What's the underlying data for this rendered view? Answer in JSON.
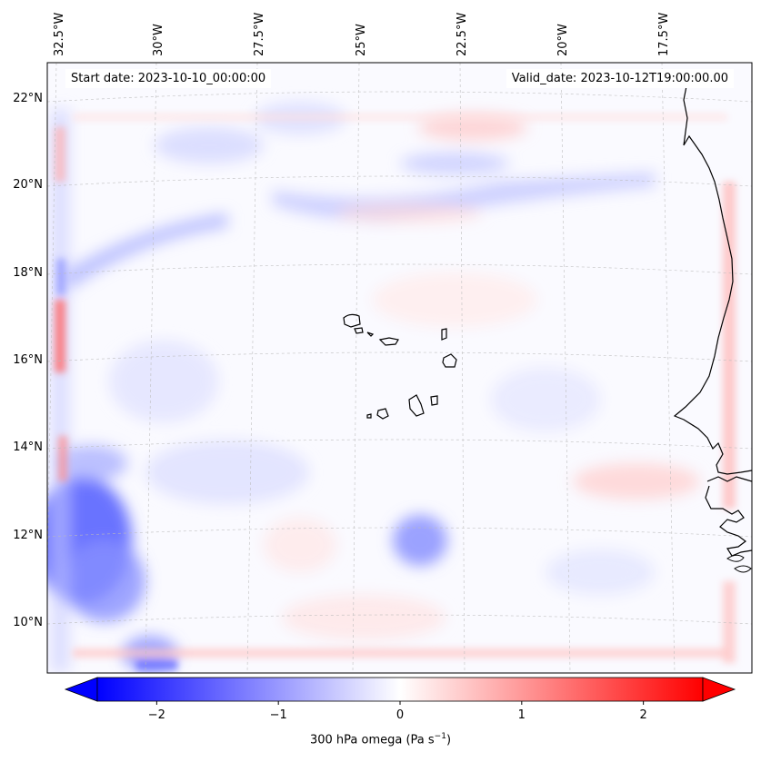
{
  "map": {
    "start_label": "Start date: 2023-10-10_00:00:00",
    "valid_label": "Valid_date: 2023-10-12T19:00:00.00",
    "lon_ticks": [
      "32.5°W",
      "30°W",
      "27.5°W",
      "25°W",
      "22.5°W",
      "20°W",
      "17.5°W"
    ],
    "lat_ticks": [
      "22°N",
      "20°N",
      "18°N",
      "16°N",
      "14°N",
      "12°N",
      "10°N"
    ],
    "features": [
      "coastline-west-africa",
      "cape-verde-islands"
    ]
  },
  "colorbar": {
    "label_prefix": "300 hPa omega (Pa s",
    "label_exp": "−1",
    "label_suffix": ")",
    "ticks": [
      {
        "value": -2,
        "label": "−2"
      },
      {
        "value": -1,
        "label": "−1"
      },
      {
        "value": 0,
        "label": "0"
      },
      {
        "value": 1,
        "label": "1"
      },
      {
        "value": 2,
        "label": "2"
      }
    ],
    "range": [
      -2.75,
      2.75
    ],
    "cmap": "bwr",
    "colors": {
      "min": "#0000ff",
      "mid": "#ffffff",
      "max": "#ff0000"
    },
    "extend": "both"
  }
}
